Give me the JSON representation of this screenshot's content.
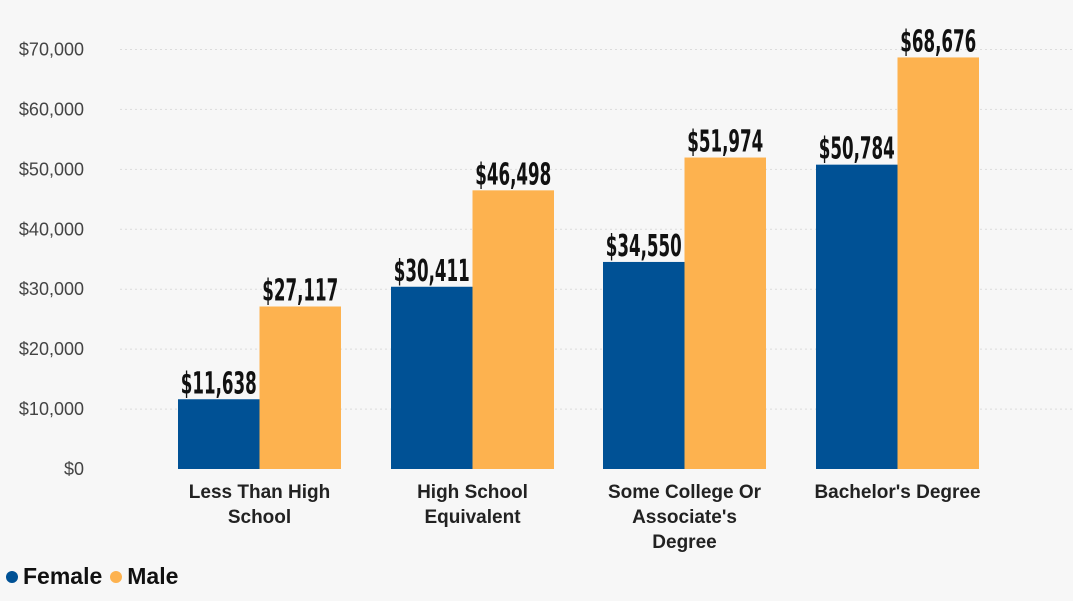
{
  "colors": {
    "female": "#005195",
    "male": "#fdb24f",
    "background": "#f7f7f7"
  },
  "legend": {
    "female_label": "Female",
    "male_label": "Male"
  },
  "chart_data": {
    "type": "bar",
    "title": "",
    "xlabel": "",
    "ylabel": "",
    "ylim": [
      0,
      70000
    ],
    "yticks": [
      "$0",
      "$10,000",
      "$20,000",
      "$30,000",
      "$40,000",
      "$50,000",
      "$60,000",
      "$70,000"
    ],
    "grid": true,
    "legend_position": "bottom-left",
    "categories": [
      [
        "Less Than High",
        "School"
      ],
      [
        "High School",
        "Equivalent"
      ],
      [
        "Some College Or",
        "Associate's",
        "Degree"
      ],
      [
        "Bachelor's Degree"
      ]
    ],
    "series": [
      {
        "name": "Female",
        "values": [
          11638,
          30411,
          34550,
          50784
        ],
        "labels": [
          "$11,638",
          "$30,411",
          "$34,550",
          "$50,784"
        ]
      },
      {
        "name": "Male",
        "values": [
          27117,
          46498,
          51974,
          68676
        ],
        "labels": [
          "$27,117",
          "$46,498",
          "$51,974",
          "$68,676"
        ]
      }
    ]
  }
}
